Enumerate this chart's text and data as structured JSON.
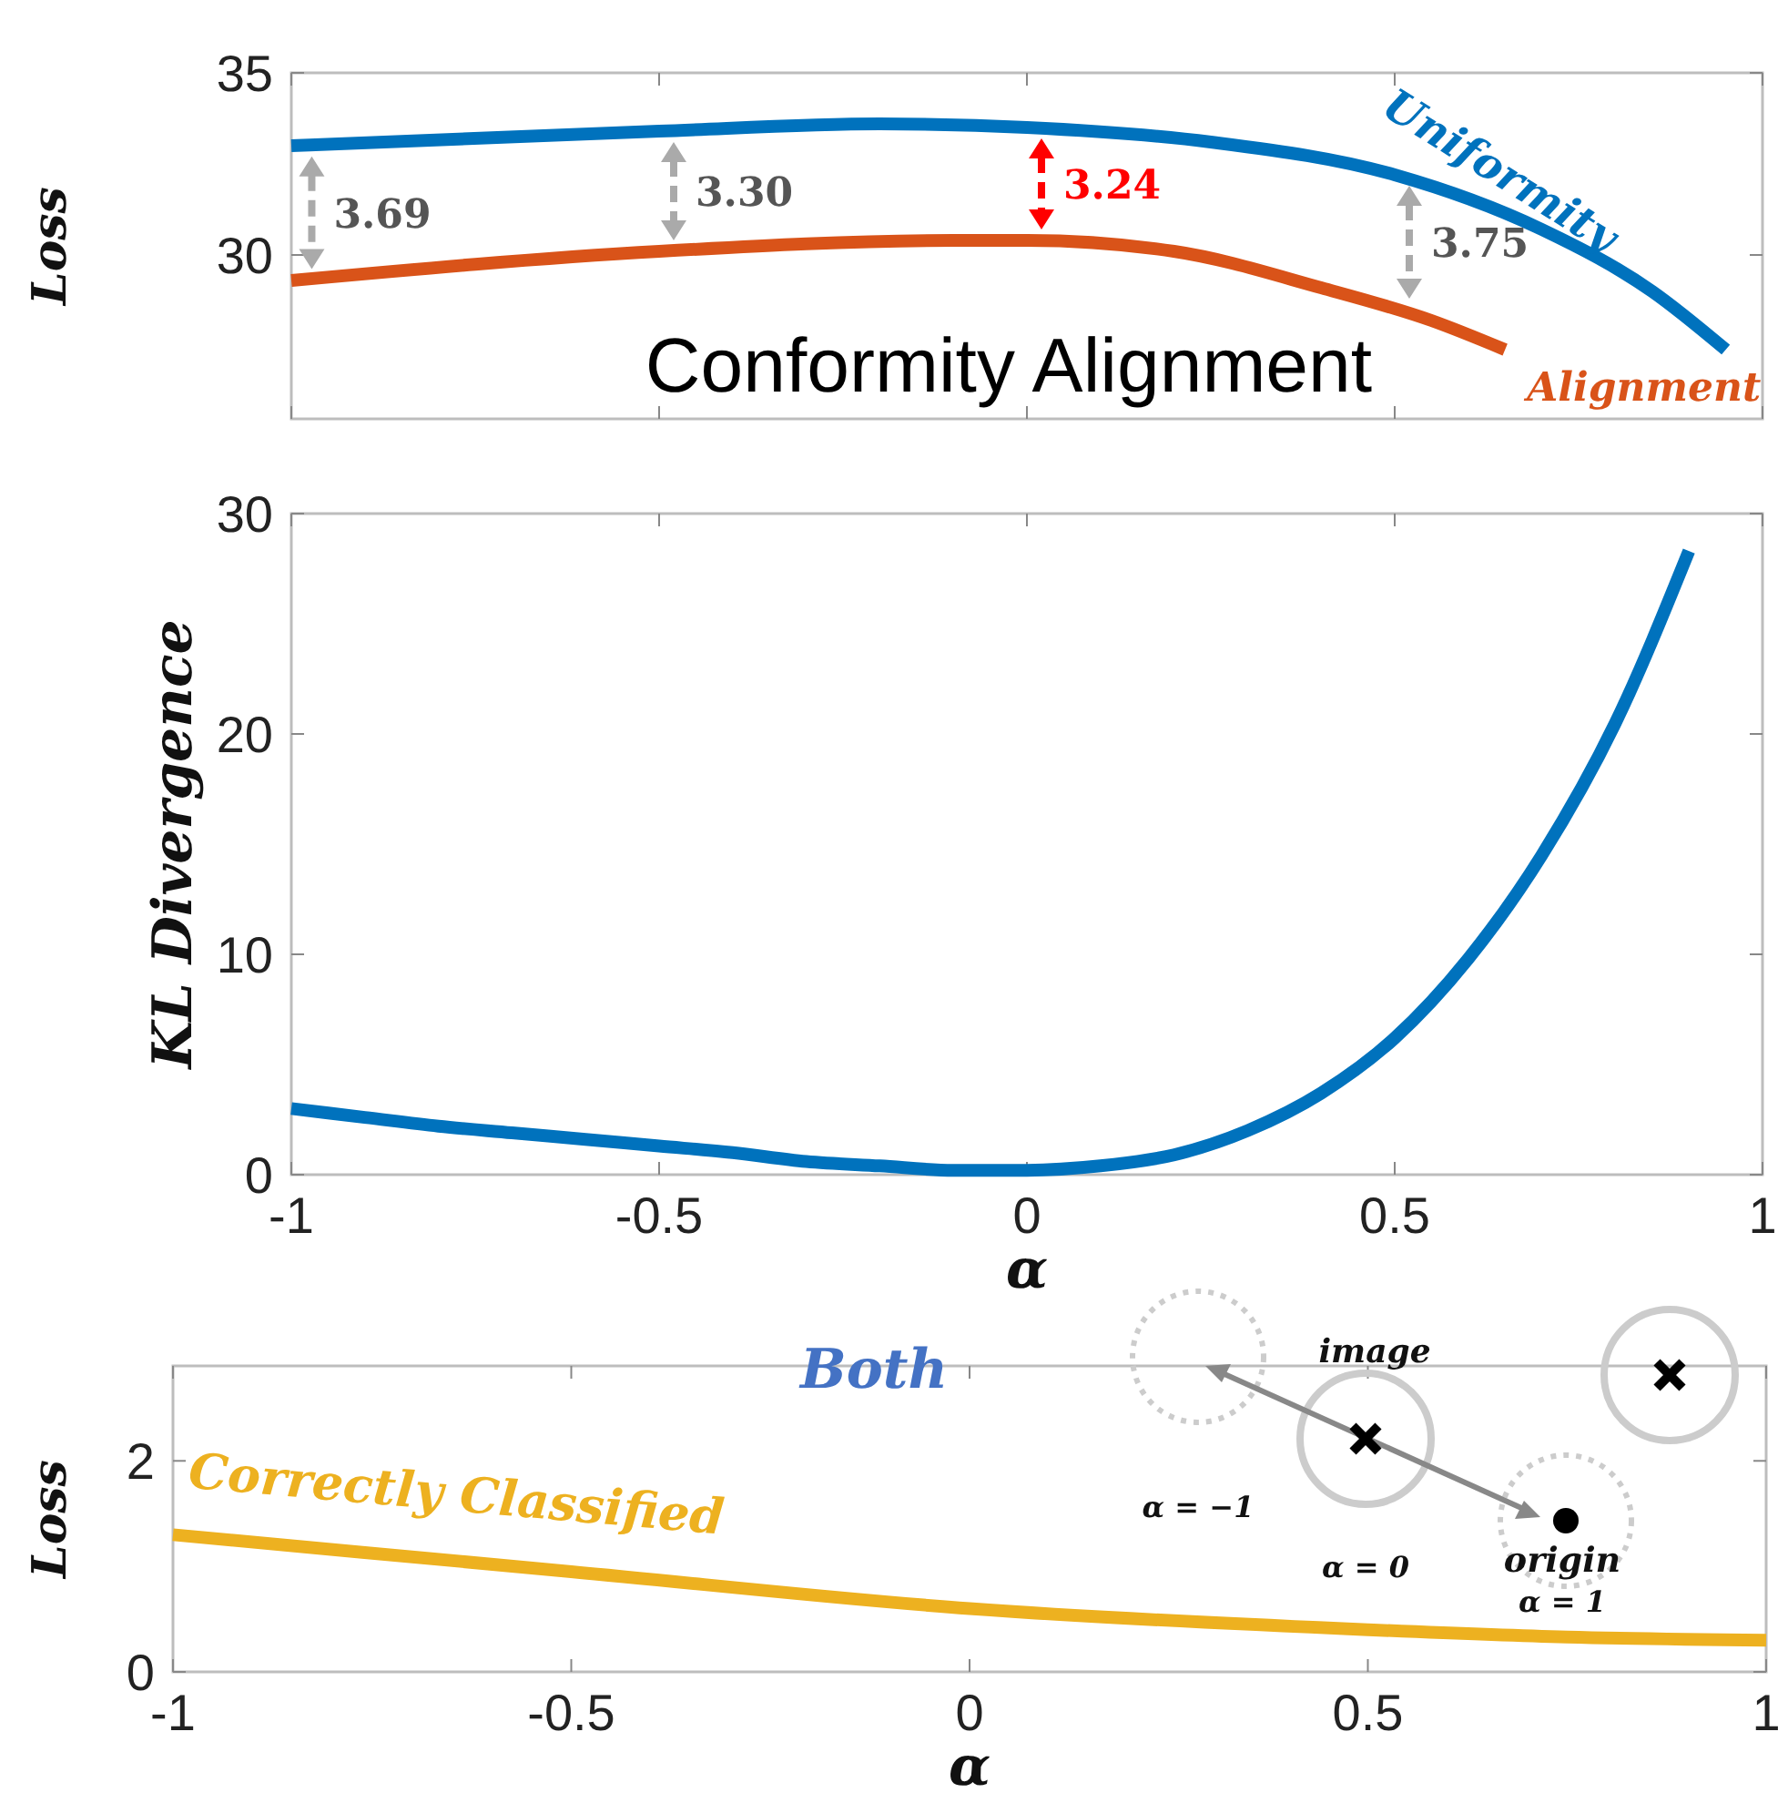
{
  "chart_data": [
    {
      "type": "line",
      "ylabel": "Loss",
      "xlim": [
        -1,
        1
      ],
      "xticks": [
        {
          "value": -1,
          "label": null
        },
        {
          "value": -0.5,
          "label": null
        },
        {
          "value": 0,
          "label": null
        },
        {
          "value": 0.5,
          "label": null
        },
        {
          "value": 1,
          "label": null
        }
      ],
      "ylim": [
        25.5,
        35
      ],
      "yticks": [
        30,
        35
      ],
      "tick_labels": "y",
      "legend": false,
      "grid": false,
      "series": [
        {
          "name": "Uniformity",
          "color": "#0072bd",
          "x": [
            -1,
            -0.5,
            -0.2,
            0,
            0.25,
            0.5,
            0.7,
            0.85,
            0.95
          ],
          "values": [
            33.0,
            33.4,
            33.6,
            33.5,
            33.1,
            32.2,
            30.7,
            29.0,
            27.4
          ]
        },
        {
          "name": "Alignment",
          "color": "#d95319",
          "x": [
            -1,
            -0.5,
            -0.1,
            0,
            0.2,
            0.4,
            0.55,
            0.65
          ],
          "values": [
            29.3,
            30.1,
            30.4,
            30.4,
            30.1,
            29.1,
            28.2,
            27.4
          ]
        }
      ],
      "annotations": [
        "3.69",
        "3.30",
        "3.24",
        "3.75",
        "Conformity Alignment"
      ]
    },
    {
      "type": "line",
      "xlabel": "α",
      "ylabel": "KL Divergence",
      "xlim": [
        -1,
        1
      ],
      "xticks": [
        -1,
        -0.5,
        0,
        0.5,
        1
      ],
      "ylim": [
        0,
        30
      ],
      "yticks": [
        0,
        10,
        20,
        30
      ],
      "legend": false,
      "grid": false,
      "series": [
        {
          "color": "#0072bd",
          "x": [
            -1,
            -0.9,
            -0.8,
            -0.7,
            -0.6,
            -0.5,
            -0.4,
            -0.3,
            -0.2,
            -0.1,
            0,
            0.1,
            0.2,
            0.3,
            0.4,
            0.5,
            0.6,
            0.7,
            0.8,
            0.9
          ],
          "values": [
            3.0,
            2.6,
            2.2,
            1.9,
            1.6,
            1.3,
            1.0,
            0.6,
            0.4,
            0.2,
            0.2,
            0.4,
            0.9,
            2.0,
            3.7,
            6.2,
            9.8,
            14.5,
            20.5,
            28.3
          ]
        }
      ]
    },
    {
      "type": "line",
      "xlabel": "α",
      "ylabel": "Loss",
      "xlim": [
        -1,
        1
      ],
      "xticks": [
        -1,
        -0.5,
        0,
        0.5,
        1
      ],
      "ylim": [
        0,
        2.9
      ],
      "yticks": [
        0,
        2
      ],
      "legend": false,
      "grid": false,
      "series": [
        {
          "name": "Correctly Classified",
          "color": "#edb120",
          "x": [
            -1,
            -0.5,
            0,
            0.5,
            0.75,
            1
          ],
          "values": [
            1.3,
            0.95,
            0.6,
            0.4,
            0.33,
            0.3
          ]
        }
      ],
      "annotations": [
        "Both",
        "image",
        "α = −1",
        "α = 0",
        "origin",
        "α = 1"
      ]
    }
  ]
}
